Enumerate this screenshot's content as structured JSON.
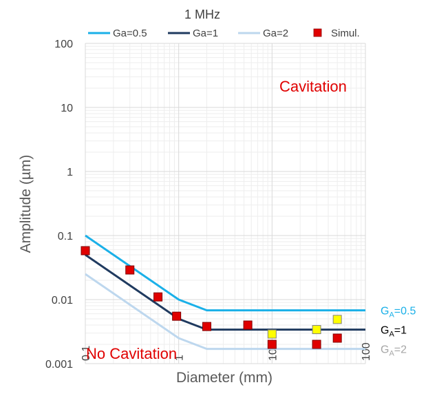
{
  "chart_data": {
    "type": "line",
    "title": "1 MHz",
    "xlabel": "Diameter (mm)",
    "ylabel": "Amplitude (µm)",
    "x_scale": "log",
    "y_scale": "log",
    "xlim": [
      0.1,
      100
    ],
    "ylim": [
      0.001,
      100
    ],
    "x_ticks": [
      0.1,
      1,
      10,
      100
    ],
    "x_tick_labels": [
      "0.1",
      "1",
      "10",
      "100"
    ],
    "y_ticks": [
      0.001,
      0.01,
      0.1,
      1,
      10,
      100
    ],
    "y_tick_labels": [
      "0.001",
      "0.01",
      "0.1",
      "1",
      "10",
      "100"
    ],
    "grid": true,
    "legend_position": "top",
    "series": [
      {
        "name": "Ga=0.5",
        "kind": "line",
        "color": "#1ab0e8",
        "x": [
          0.1,
          1,
          2,
          100
        ],
        "y": [
          0.1,
          0.01,
          0.0068,
          0.0068
        ]
      },
      {
        "name": "Ga=1",
        "kind": "line",
        "color": "#1f3a5f",
        "x": [
          0.1,
          1,
          2,
          100
        ],
        "y": [
          0.05,
          0.005,
          0.0034,
          0.0034
        ]
      },
      {
        "name": "Ga=2",
        "kind": "line",
        "color": "#bdd7ee",
        "x": [
          0.1,
          1,
          2,
          100
        ],
        "y": [
          0.025,
          0.0025,
          0.0017,
          0.0017
        ]
      },
      {
        "name": "Simul.",
        "kind": "marker",
        "color": "#e00000",
        "x": [
          0.1,
          0.3,
          0.6,
          0.95,
          2,
          5.5,
          10,
          30,
          50
        ],
        "y": [
          0.058,
          0.029,
          0.011,
          0.0055,
          0.0038,
          0.004,
          0.002,
          0.002,
          0.0025
        ]
      },
      {
        "name": "",
        "kind": "marker",
        "color": "#ffff00",
        "x": [
          10,
          30,
          50
        ],
        "y": [
          0.0029,
          0.0034,
          0.0049
        ]
      }
    ],
    "annotations": [
      {
        "text": "Cavitation",
        "color": "#e00000"
      },
      {
        "text": "No Cavitation",
        "color": "#e00000"
      }
    ],
    "end_labels": [
      {
        "main": "G",
        "sub": "A",
        "rest": "=0.5",
        "color": "#1ab0e8",
        "y": 0.0068
      },
      {
        "main": "G",
        "sub": "A",
        "rest": "=1",
        "color": "#000000",
        "y": 0.0034
      },
      {
        "main": "G",
        "sub": "A",
        "rest": "=2",
        "color": "#a6a6a6",
        "y": 0.0017
      }
    ]
  }
}
